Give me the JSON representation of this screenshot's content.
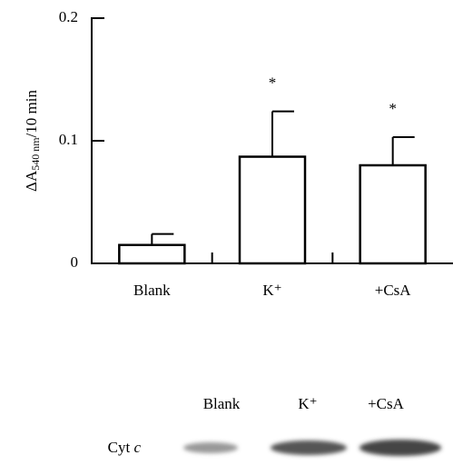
{
  "chart_data": {
    "type": "bar",
    "y_label": {
      "main": "ΔA",
      "sub": "540 nm",
      "rest": "/10 min"
    },
    "categories": [
      "Blank",
      "K⁺",
      "+CsA"
    ],
    "values": [
      0.015,
      0.087,
      0.08
    ],
    "errors": [
      0.009,
      0.037,
      0.023
    ],
    "annotations": [
      null,
      "*",
      "*"
    ],
    "color": "#ffffff",
    "ylim": [
      0,
      0.2
    ],
    "yticks": [
      0,
      0.1,
      0.2
    ]
  },
  "blot": {
    "lanes": [
      "Blank",
      "K⁺",
      "+CsA"
    ],
    "row_label": [
      "Cyt",
      "c"
    ]
  }
}
